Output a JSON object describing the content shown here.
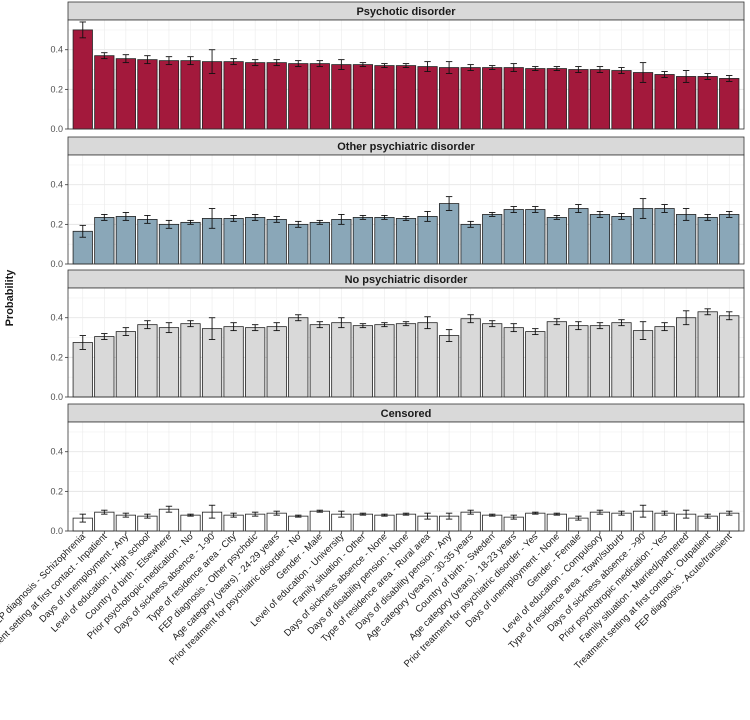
{
  "chart_data": {
    "type": "bar",
    "ylabel": "Probability",
    "ylim": [
      0,
      0.55
    ],
    "yticks": [
      0.0,
      0.2,
      0.4
    ],
    "grid": true,
    "categories": [
      "FEP diagnosis - Schizophrenia",
      "Treatment setting at first contact - Inpatient",
      "Days of unemployment - Any",
      "Level of education - High school",
      "Country of birth - Elsewhere",
      "Prior psychotropic medication - No",
      "Days of sickness absence - 1-90",
      "Type of residence area - City",
      "FEP diagnosis - Other psychotic",
      "Age category (years) - 24-29 years",
      "Prior treatment for psychiatric disorder - No",
      "Gender - Male",
      "Level of education - University",
      "Family situation - Other",
      "Days of sickness absence - None",
      "Days of disability pension - None",
      "Type of residence area - Rural area",
      "Days of disability pension - Any",
      "Age category (years) - 30-35 years",
      "Country of birth - Sweden",
      "Age category (years) - 18-23 years",
      "Prior treatment for psychiatric disorder - Yes",
      "Days of unemployment - None",
      "Gender - Female",
      "Level of education - Compulsory",
      "Type of residence area - Town/suburb",
      "Days of sickness absence - >90",
      "Prior psychotropic medication - Yes",
      "Family situation - Married/partnered",
      "Treatment setting at first contact - Outpatient",
      "FEP diagnosis - Acute/transient"
    ],
    "series": [
      {
        "name": "Psychotic disorder",
        "color": "#a3193c",
        "values": [
          0.5,
          0.37,
          0.355,
          0.35,
          0.345,
          0.345,
          0.34,
          0.34,
          0.335,
          0.335,
          0.33,
          0.33,
          0.325,
          0.325,
          0.32,
          0.32,
          0.315,
          0.31,
          0.31,
          0.31,
          0.31,
          0.305,
          0.305,
          0.3,
          0.3,
          0.295,
          0.285,
          0.275,
          0.265,
          0.265,
          0.255
        ],
        "lower": [
          0.46,
          0.355,
          0.335,
          0.33,
          0.325,
          0.325,
          0.28,
          0.325,
          0.32,
          0.32,
          0.315,
          0.315,
          0.3,
          0.315,
          0.31,
          0.31,
          0.29,
          0.28,
          0.295,
          0.3,
          0.29,
          0.295,
          0.295,
          0.285,
          0.285,
          0.28,
          0.235,
          0.26,
          0.235,
          0.25,
          0.24
        ],
        "upper": [
          0.54,
          0.385,
          0.375,
          0.37,
          0.365,
          0.365,
          0.4,
          0.355,
          0.35,
          0.35,
          0.345,
          0.345,
          0.35,
          0.335,
          0.33,
          0.33,
          0.34,
          0.34,
          0.325,
          0.32,
          0.33,
          0.315,
          0.315,
          0.315,
          0.315,
          0.31,
          0.335,
          0.29,
          0.295,
          0.28,
          0.27
        ]
      },
      {
        "name": "Other psychiatric disorder",
        "color": "#8aa7b8",
        "values": [
          0.165,
          0.235,
          0.24,
          0.225,
          0.2,
          0.21,
          0.23,
          0.23,
          0.235,
          0.225,
          0.2,
          0.21,
          0.225,
          0.235,
          0.235,
          0.23,
          0.24,
          0.305,
          0.2,
          0.25,
          0.275,
          0.275,
          0.235,
          0.28,
          0.25,
          0.24,
          0.28,
          0.28,
          0.25,
          0.235,
          0.25
        ],
        "lower": [
          0.135,
          0.22,
          0.22,
          0.205,
          0.18,
          0.2,
          0.18,
          0.215,
          0.22,
          0.21,
          0.185,
          0.2,
          0.2,
          0.225,
          0.225,
          0.22,
          0.215,
          0.27,
          0.185,
          0.24,
          0.26,
          0.26,
          0.225,
          0.26,
          0.235,
          0.225,
          0.23,
          0.26,
          0.22,
          0.22,
          0.235
        ],
        "upper": [
          0.195,
          0.25,
          0.26,
          0.245,
          0.22,
          0.22,
          0.28,
          0.245,
          0.25,
          0.24,
          0.215,
          0.22,
          0.25,
          0.245,
          0.245,
          0.24,
          0.265,
          0.34,
          0.215,
          0.26,
          0.29,
          0.29,
          0.245,
          0.3,
          0.265,
          0.255,
          0.33,
          0.3,
          0.28,
          0.25,
          0.265
        ]
      },
      {
        "name": "No psychiatric disorder",
        "color": "#d9d9d9",
        "values": [
          0.275,
          0.305,
          0.33,
          0.365,
          0.35,
          0.37,
          0.345,
          0.355,
          0.35,
          0.355,
          0.4,
          0.365,
          0.375,
          0.36,
          0.365,
          0.37,
          0.375,
          0.31,
          0.395,
          0.37,
          0.35,
          0.33,
          0.38,
          0.36,
          0.36,
          0.375,
          0.335,
          0.355,
          0.4,
          0.43,
          0.41
        ],
        "lower": [
          0.24,
          0.29,
          0.31,
          0.345,
          0.325,
          0.355,
          0.29,
          0.335,
          0.335,
          0.335,
          0.385,
          0.35,
          0.35,
          0.35,
          0.355,
          0.36,
          0.345,
          0.28,
          0.375,
          0.355,
          0.33,
          0.315,
          0.365,
          0.34,
          0.345,
          0.36,
          0.29,
          0.335,
          0.365,
          0.415,
          0.39
        ],
        "upper": [
          0.31,
          0.32,
          0.35,
          0.385,
          0.375,
          0.385,
          0.4,
          0.375,
          0.365,
          0.375,
          0.415,
          0.38,
          0.4,
          0.37,
          0.375,
          0.38,
          0.405,
          0.34,
          0.415,
          0.385,
          0.37,
          0.345,
          0.395,
          0.38,
          0.375,
          0.39,
          0.38,
          0.375,
          0.435,
          0.445,
          0.43
        ]
      },
      {
        "name": "Censored",
        "color": "#ffffff",
        "values": [
          0.065,
          0.095,
          0.08,
          0.075,
          0.11,
          0.08,
          0.095,
          0.08,
          0.085,
          0.09,
          0.075,
          0.1,
          0.085,
          0.085,
          0.08,
          0.085,
          0.075,
          0.075,
          0.095,
          0.08,
          0.07,
          0.09,
          0.085,
          0.065,
          0.095,
          0.09,
          0.1,
          0.09,
          0.085,
          0.075,
          0.09
        ],
        "lower": [
          0.045,
          0.085,
          0.07,
          0.065,
          0.095,
          0.075,
          0.065,
          0.07,
          0.075,
          0.08,
          0.07,
          0.095,
          0.07,
          0.08,
          0.075,
          0.08,
          0.06,
          0.06,
          0.085,
          0.075,
          0.06,
          0.085,
          0.08,
          0.055,
          0.085,
          0.08,
          0.07,
          0.08,
          0.065,
          0.065,
          0.08
        ],
        "upper": [
          0.085,
          0.105,
          0.09,
          0.085,
          0.125,
          0.085,
          0.13,
          0.09,
          0.095,
          0.1,
          0.08,
          0.105,
          0.1,
          0.09,
          0.085,
          0.09,
          0.09,
          0.09,
          0.105,
          0.085,
          0.08,
          0.095,
          0.09,
          0.075,
          0.105,
          0.1,
          0.13,
          0.1,
          0.105,
          0.085,
          0.1
        ]
      }
    ]
  }
}
